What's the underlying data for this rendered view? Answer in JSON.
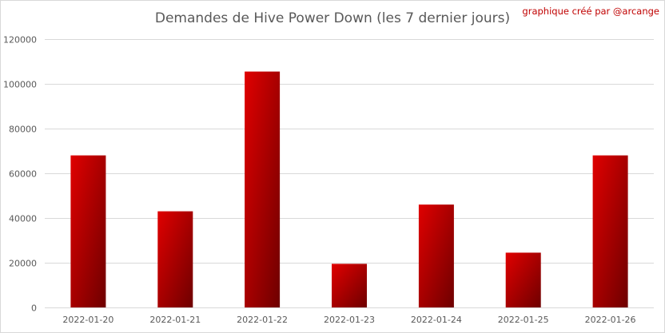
{
  "credit": "graphique créé par @arcange",
  "colors": {
    "bar_light": "#e00000",
    "bar_dark": "#6e0000",
    "grid": "#d9d9d9",
    "text": "#595959",
    "credit": "#c00000"
  },
  "chart_data": {
    "type": "bar",
    "title": "Demandes de Hive Power Down (les 7 dernier jours)",
    "xlabel": "",
    "ylabel": "",
    "categories": [
      "2022-01-20",
      "2022-01-21",
      "2022-01-22",
      "2022-01-23",
      "2022-01-24",
      "2022-01-25",
      "2022-01-26"
    ],
    "values": [
      68000,
      43000,
      105500,
      19500,
      46000,
      24500,
      68000
    ],
    "ylim": [
      0,
      120000
    ],
    "yticks": [
      0,
      20000,
      40000,
      60000,
      80000,
      100000,
      120000
    ],
    "grid": true,
    "legend": "none"
  }
}
